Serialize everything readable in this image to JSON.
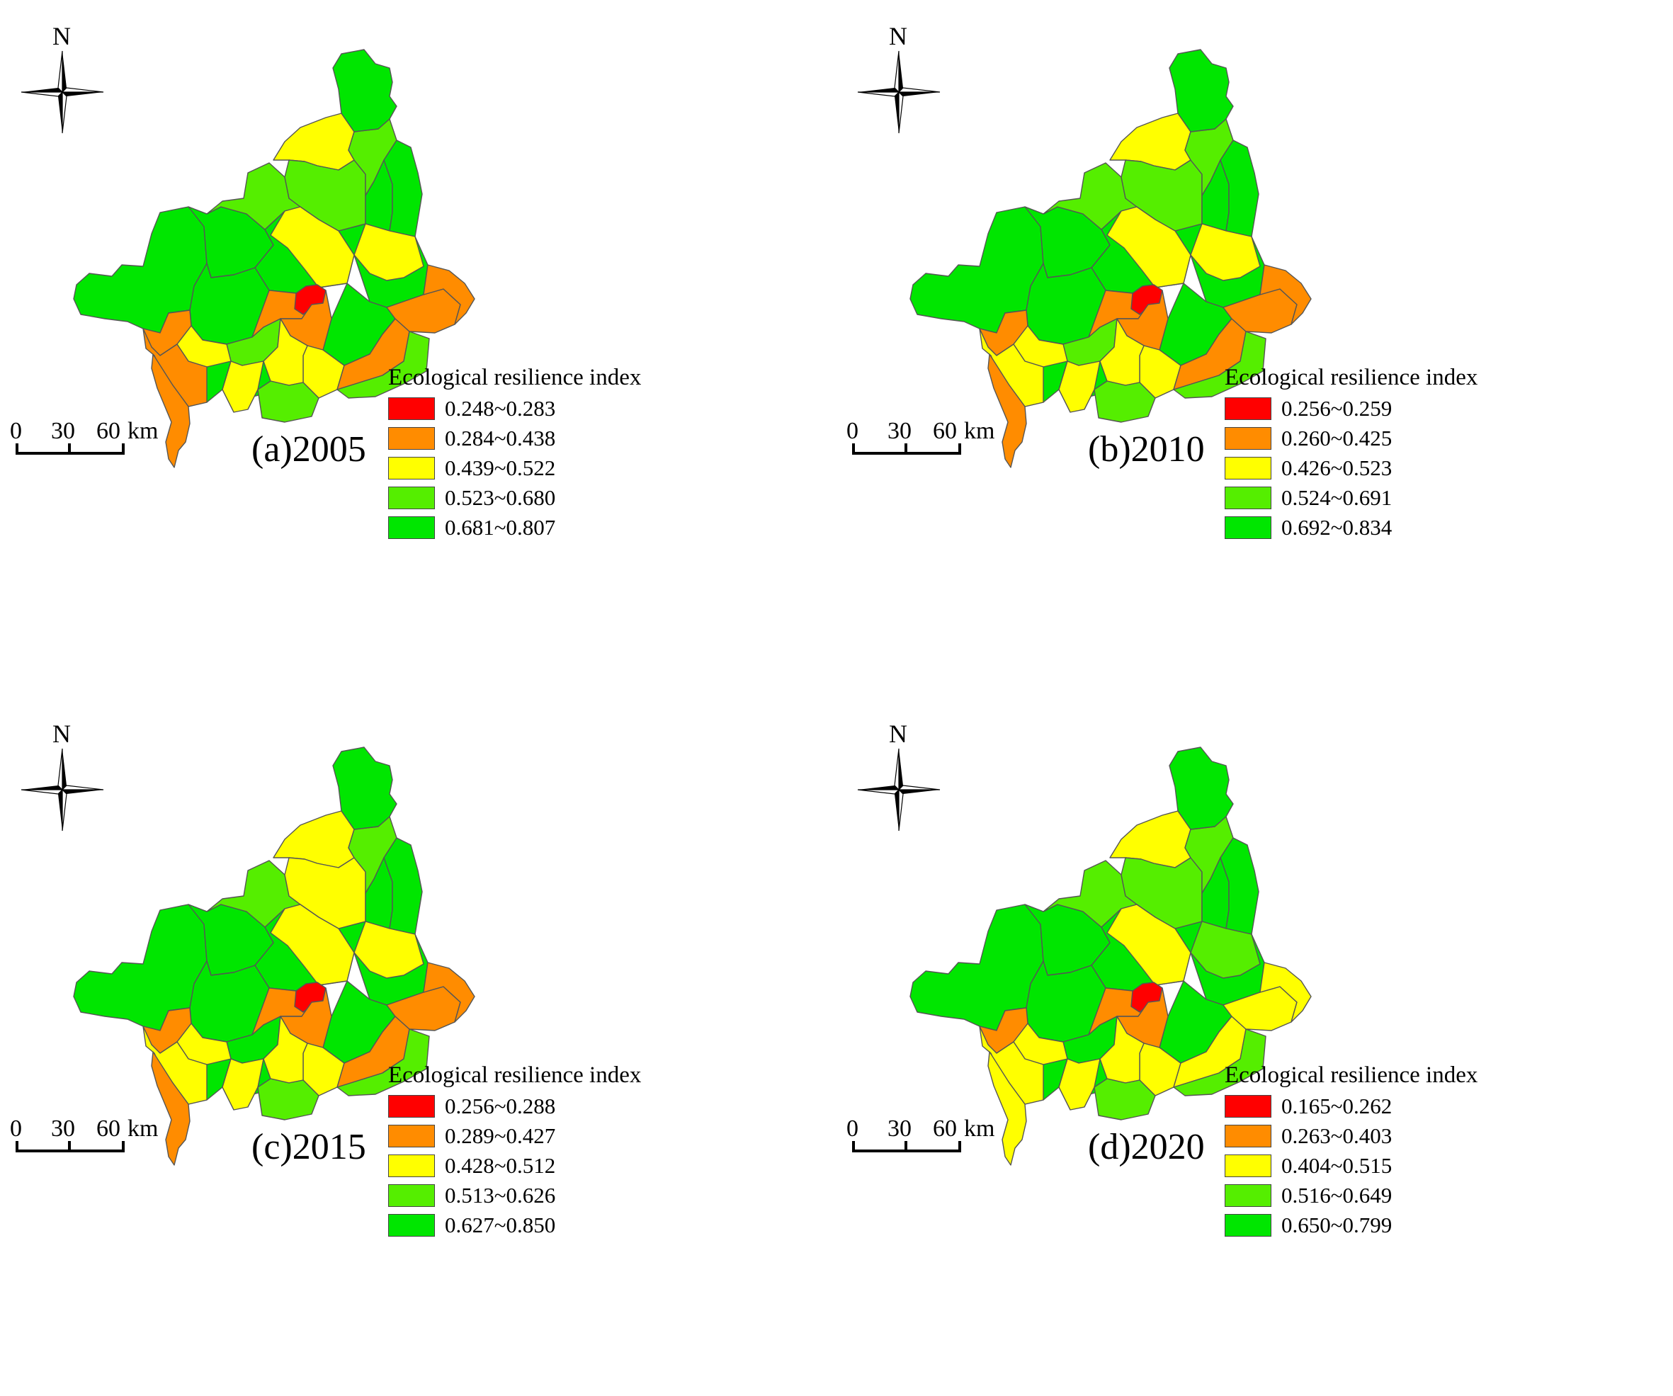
{
  "colors": {
    "c1": "#ff0000",
    "c2": "#ff8c00",
    "c3": "#ffff00",
    "c4": "#55ee00",
    "c5": "#00e600",
    "border": "#555555"
  },
  "north_label": "N",
  "scale_bar": {
    "ticks": [
      "0",
      "30",
      "60"
    ],
    "unit": "km"
  },
  "legend_title": "Ecological resilience index",
  "panels": [
    {
      "label": "(a)2005",
      "classes": [
        "0.248~0.283",
        "0.284~0.438",
        "0.439~0.522",
        "0.523~0.680",
        "0.681~0.807"
      ],
      "region_classes": [
        5,
        5,
        5,
        5,
        5,
        5,
        5,
        5,
        5,
        4,
        3,
        4,
        4,
        5,
        5,
        5,
        2,
        3,
        3,
        4,
        1,
        2,
        3,
        2,
        2,
        2,
        2,
        3,
        3,
        3,
        4,
        4,
        2,
        2
      ]
    },
    {
      "label": "(b)2010",
      "classes": [
        "0.256~0.259",
        "0.260~0.425",
        "0.426~0.523",
        "0.524~0.691",
        "0.692~0.834"
      ],
      "region_classes": [
        5,
        5,
        5,
        5,
        5,
        5,
        5,
        5,
        5,
        4,
        3,
        4,
        4,
        5,
        5,
        5,
        2,
        3,
        3,
        4,
        1,
        2,
        3,
        2,
        2,
        2,
        2,
        3,
        3,
        3,
        4,
        4,
        3,
        2
      ]
    },
    {
      "label": "(c)2015",
      "classes": [
        "0.256~0.288",
        "0.289~0.427",
        "0.428~0.512",
        "0.513~0.626",
        "0.627~0.850"
      ],
      "region_classes": [
        5,
        5,
        5,
        5,
        5,
        5,
        5,
        5,
        5,
        4,
        3,
        3,
        4,
        5,
        5,
        5,
        2,
        3,
        3,
        5,
        1,
        2,
        3,
        2,
        2,
        2,
        2,
        3,
        3,
        3,
        4,
        4,
        3,
        2
      ]
    },
    {
      "label": "(d)2020",
      "classes": [
        "0.165~0.262",
        "0.263~0.403",
        "0.404~0.515",
        "0.516~0.649",
        "0.650~0.799"
      ],
      "region_classes": [
        5,
        5,
        5,
        5,
        5,
        5,
        5,
        5,
        5,
        4,
        3,
        4,
        4,
        5,
        5,
        5,
        2,
        3,
        4,
        5,
        1,
        2,
        3,
        3,
        3,
        3,
        2,
        3,
        3,
        3,
        4,
        4,
        3,
        3
      ]
    }
  ]
}
